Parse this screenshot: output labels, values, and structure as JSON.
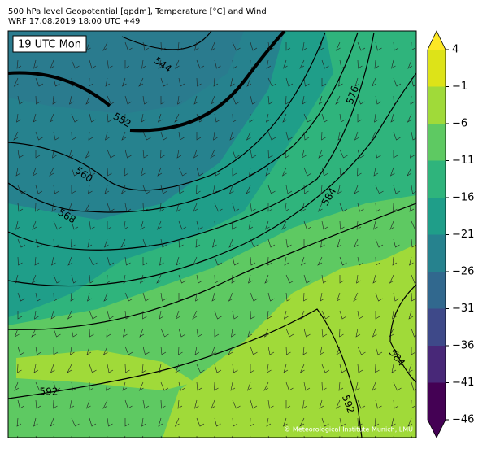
{
  "header": {
    "line1": "500 hPa level Geopotential [gpdm], Temperature [°C] and Wind",
    "line2": "WRF 17.08.2019 18:00 UTC +49"
  },
  "map": {
    "time_label": "19 UTC Mon",
    "credit": "© Meteorological Institute Munich, LMU",
    "contour_labels": [
      544,
      552,
      560,
      568,
      576,
      584,
      592,
      592,
      584
    ]
  },
  "colorbar": {
    "ticks": [
      4,
      {
        "value": -1,
        "label": "−1"
      },
      {
        "value": -6,
        "label": "−6"
      },
      {
        "value": -11,
        "label": "−11"
      },
      {
        "value": -16,
        "label": "−16"
      },
      {
        "value": -21,
        "label": "−21"
      },
      {
        "value": -26,
        "label": "−26"
      },
      {
        "value": -31,
        "label": "−31"
      },
      {
        "value": -36,
        "label": "−36"
      },
      {
        "value": -41,
        "label": "−41"
      },
      {
        "value": -46,
        "label": "−46"
      }
    ],
    "colors": [
      "#dde318",
      "#a0da39",
      "#5ec962",
      "#2fb47c",
      "#1f9e89",
      "#26828e",
      "#31688e",
      "#3e4989",
      "#482878",
      "#440154"
    ],
    "over_color": "#fde725",
    "under_color": "#440154"
  }
}
